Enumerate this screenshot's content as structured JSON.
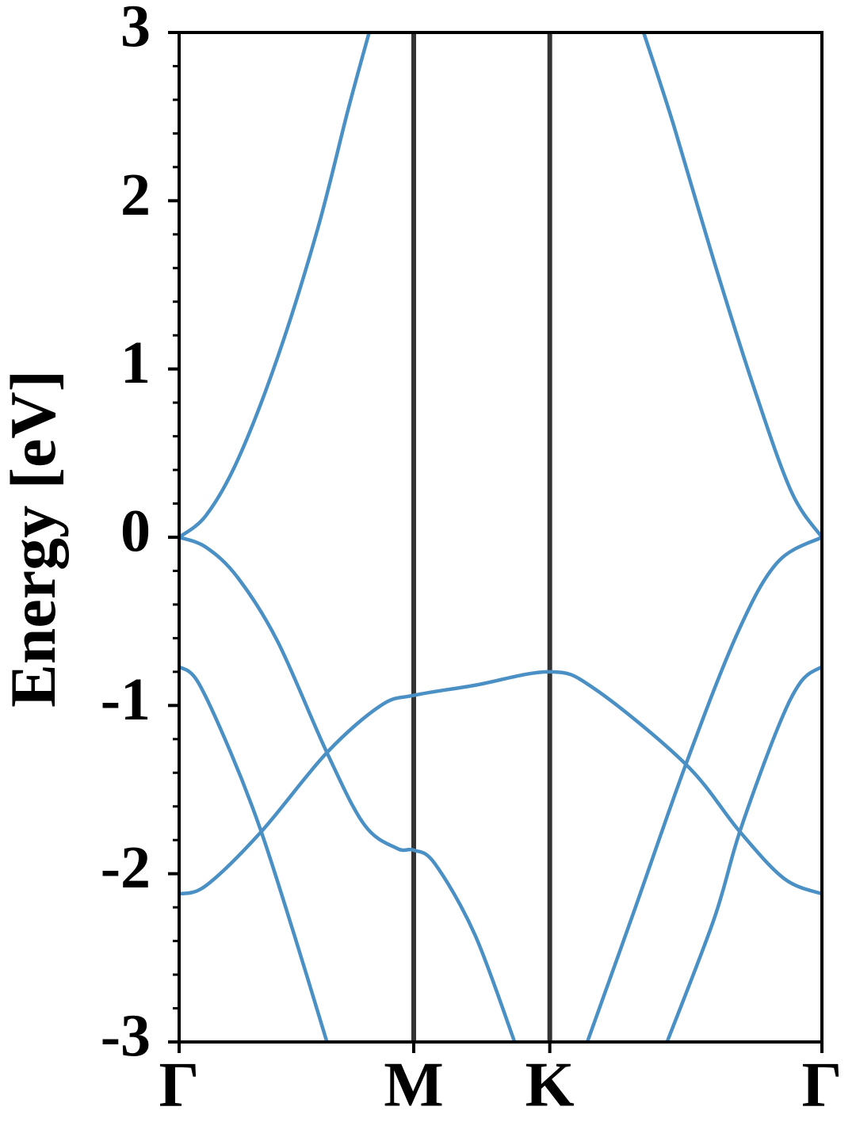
{
  "chart_data": {
    "type": "line",
    "ylabel": "Energy [eV]",
    "xlim": [
      0,
      2.74
    ],
    "ylim": [
      -3,
      3
    ],
    "xticks": [
      {
        "value": 0,
        "label": "Γ"
      },
      {
        "value": 1,
        "label": "M"
      },
      {
        "value": 1.58,
        "label": "K"
      },
      {
        "value": 2.74,
        "label": "Γ"
      }
    ],
    "yticks": [
      -3,
      -2,
      -1,
      0,
      1,
      2,
      3
    ],
    "yminorticks": [
      -2.8,
      -2.6,
      -2.4,
      -2.2,
      -1.8,
      -1.6,
      -1.4,
      -1.2,
      -0.8,
      -0.6,
      -0.4,
      -0.2,
      0.2,
      0.4,
      0.6,
      0.8,
      1.2,
      1.4,
      1.6,
      1.8,
      2.2,
      2.4,
      2.6,
      2.8
    ],
    "vlines": true,
    "vline_color": "#333333",
    "series": [
      {
        "color": "#4a90c4",
        "x": [
          0,
          0.115,
          0.25,
          0.42,
          0.59,
          0.72,
          0.81
        ],
        "values": [
          0,
          0.13,
          0.46,
          1.07,
          1.83,
          2.54,
          3.0
        ]
      },
      {
        "color": "#4a90c4",
        "x": [
          1.98,
          2.11,
          2.28,
          2.45,
          2.61,
          2.74
        ],
        "values": [
          3.0,
          2.44,
          1.64,
          0.89,
          0.27,
          0
        ]
      },
      {
        "color": "#4a90c4",
        "x": [
          0,
          0.115,
          0.25,
          0.42,
          0.63,
          0.79,
          0.93,
          1.0,
          1.09,
          1.26,
          1.43
        ],
        "values": [
          0,
          -0.06,
          -0.24,
          -0.62,
          -1.28,
          -1.71,
          -1.85,
          -1.86,
          -1.94,
          -2.36,
          -3.0
        ]
      },
      {
        "color": "#4a90c4",
        "x": [
          0,
          0.115,
          0.35,
          0.63,
          0.86,
          1.0,
          1.26,
          1.58,
          1.77,
          2.16,
          2.39,
          2.58,
          2.74
        ],
        "values": [
          -2.12,
          -2.07,
          -1.75,
          -1.28,
          -1.0,
          -0.94,
          -0.88,
          -0.8,
          -0.9,
          -1.35,
          -1.75,
          -2.03,
          -2.12
        ]
      },
      {
        "color": "#4a90c4",
        "x": [
          0,
          0.08,
          0.22,
          0.35,
          0.49,
          0.63
        ],
        "values": [
          -0.77,
          -0.86,
          -1.28,
          -1.75,
          -2.36,
          -3.0
        ]
      },
      {
        "color": "#4a90c4",
        "x": [
          1.74,
          1.94,
          2.16,
          2.38,
          2.55,
          2.74
        ],
        "values": [
          -3.0,
          -2.22,
          -1.35,
          -0.57,
          -0.15,
          0
        ]
      },
      {
        "color": "#4a90c4",
        "x": [
          2.08,
          2.28,
          2.39,
          2.55,
          2.65,
          2.74
        ],
        "values": [
          -3.0,
          -2.27,
          -1.75,
          -1.14,
          -0.86,
          -0.77
        ]
      }
    ]
  }
}
